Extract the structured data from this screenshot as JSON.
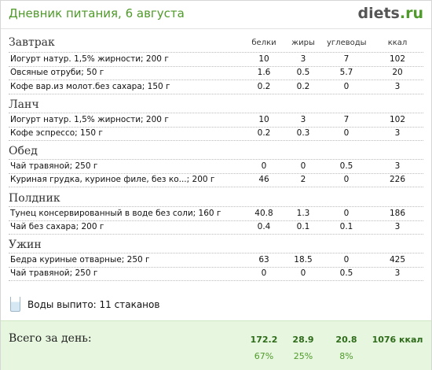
{
  "header": {
    "title": "Дневник питания, 6 августа",
    "logo_main": "diets",
    "logo_suffix": ".ru"
  },
  "columns": [
    "белки",
    "жиры",
    "углеводы",
    "ккал"
  ],
  "meals": [
    {
      "name": "Завтрак",
      "items": [
        {
          "food": "Йогурт натур. 1,5% жирности; 200 г",
          "protein": "10",
          "fat": "3",
          "carbs": "7",
          "kcal": "102"
        },
        {
          "food": "Овсяные отруби; 50 г",
          "protein": "1.6",
          "fat": "0.5",
          "carbs": "5.7",
          "kcal": "20"
        },
        {
          "food": "Кофе вар.из молот.без сахара; 150 г",
          "protein": "0.2",
          "fat": "0.2",
          "carbs": "0",
          "kcal": "3"
        }
      ]
    },
    {
      "name": "Ланч",
      "items": [
        {
          "food": "Йогурт натур. 1,5% жирности; 200 г",
          "protein": "10",
          "fat": "3",
          "carbs": "7",
          "kcal": "102"
        },
        {
          "food": "Кофе эспрессо; 150 г",
          "protein": "0.2",
          "fat": "0.3",
          "carbs": "0",
          "kcal": "3"
        }
      ]
    },
    {
      "name": "Обед",
      "items": [
        {
          "food": "Чай травяной; 250 г",
          "protein": "0",
          "fat": "0",
          "carbs": "0.5",
          "kcal": "3"
        },
        {
          "food": "Куриная грудка, куриное филе, без ко...; 200 г",
          "protein": "46",
          "fat": "2",
          "carbs": "0",
          "kcal": "226"
        }
      ]
    },
    {
      "name": "Полдник",
      "items": [
        {
          "food": "Тунец консервированный в воде без соли; 160 г",
          "protein": "40.8",
          "fat": "1.3",
          "carbs": "0",
          "kcal": "186"
        },
        {
          "food": "Чай без сахара; 200 г",
          "protein": "0.4",
          "fat": "0.1",
          "carbs": "0.1",
          "kcal": "3"
        }
      ]
    },
    {
      "name": "Ужин",
      "items": [
        {
          "food": "Бедра куриные отварные; 250 г",
          "protein": "63",
          "fat": "18.5",
          "carbs": "0",
          "kcal": "425"
        },
        {
          "food": "Чай травяной; 250 г",
          "protein": "0",
          "fat": "0",
          "carbs": "0.5",
          "kcal": "3"
        }
      ]
    }
  ],
  "water": {
    "label": "Воды выпито: 11 стаканов",
    "icon": "water-glass-icon"
  },
  "totals": {
    "label": "Всего за день:",
    "protein": "172.2",
    "fat": "28.9",
    "carbs": "20.8",
    "kcal": "1076 ккал",
    "protein_pct": "67%",
    "fat_pct": "25%",
    "carbs_pct": "8%"
  },
  "colors": {
    "accent": "#4f9a2a",
    "footer_bg": "#e7f7df",
    "totals_text": "#2e6b1a"
  }
}
